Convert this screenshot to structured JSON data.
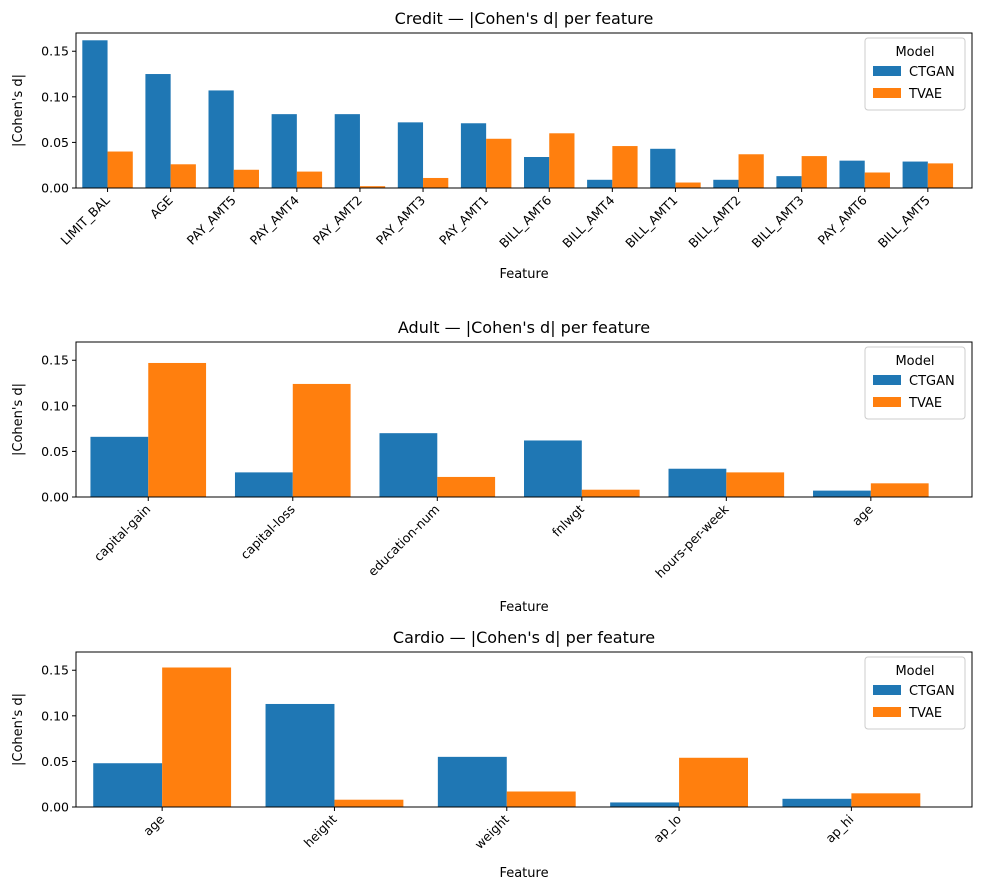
{
  "colors": {
    "CTGAN": "#1f77b4",
    "TVAE": "#ff7f0e"
  },
  "chart_data": [
    {
      "type": "bar",
      "title": "Credit — |Cohen's d| per feature",
      "xlabel": "Feature",
      "ylabel": "|Cohen's d|",
      "ylim": [
        0,
        0.17
      ],
      "yticks": [
        "0.00",
        "0.05",
        "0.10",
        "0.15"
      ],
      "legend_title": "Model",
      "legend_position": "top-right",
      "categories": [
        "LIMIT_BAL",
        "AGE",
        "PAY_AMT5",
        "PAY_AMT4",
        "PAY_AMT2",
        "PAY_AMT3",
        "PAY_AMT1",
        "BILL_AMT6",
        "BILL_AMT4",
        "BILL_AMT1",
        "BILL_AMT2",
        "BILL_AMT3",
        "PAY_AMT6",
        "BILL_AMT5"
      ],
      "series": [
        {
          "name": "CTGAN",
          "values": [
            0.162,
            0.125,
            0.107,
            0.081,
            0.081,
            0.072,
            0.071,
            0.034,
            0.009,
            0.043,
            0.009,
            0.013,
            0.03,
            0.029
          ]
        },
        {
          "name": "TVAE",
          "values": [
            0.04,
            0.026,
            0.02,
            0.018,
            0.002,
            0.011,
            0.054,
            0.06,
            0.046,
            0.006,
            0.037,
            0.035,
            0.017,
            0.027
          ]
        }
      ]
    },
    {
      "type": "bar",
      "title": "Adult — |Cohen's d| per feature",
      "xlabel": "Feature",
      "ylabel": "|Cohen's d|",
      "ylim": [
        0,
        0.17
      ],
      "yticks": [
        "0.00",
        "0.05",
        "0.10",
        "0.15"
      ],
      "legend_title": "Model",
      "legend_position": "top-right",
      "categories": [
        "capital-gain",
        "capital-loss",
        "education-num",
        "fnlwgt",
        "hours-per-week",
        "age"
      ],
      "series": [
        {
          "name": "CTGAN",
          "values": [
            0.066,
            0.027,
            0.07,
            0.062,
            0.031,
            0.007
          ]
        },
        {
          "name": "TVAE",
          "values": [
            0.147,
            0.124,
            0.022,
            0.008,
            0.027,
            0.015
          ]
        }
      ]
    },
    {
      "type": "bar",
      "title": "Cardio — |Cohen's d| per feature",
      "xlabel": "Feature",
      "ylabel": "|Cohen's d|",
      "ylim": [
        0,
        0.17
      ],
      "yticks": [
        "0.00",
        "0.05",
        "0.10",
        "0.15"
      ],
      "legend_title": "Model",
      "legend_position": "top-right",
      "categories": [
        "age",
        "height",
        "weight",
        "ap_lo",
        "ap_hi"
      ],
      "series": [
        {
          "name": "CTGAN",
          "values": [
            0.048,
            0.113,
            0.055,
            0.005,
            0.009
          ]
        },
        {
          "name": "TVAE",
          "values": [
            0.153,
            0.008,
            0.017,
            0.054,
            0.015
          ]
        }
      ]
    }
  ]
}
